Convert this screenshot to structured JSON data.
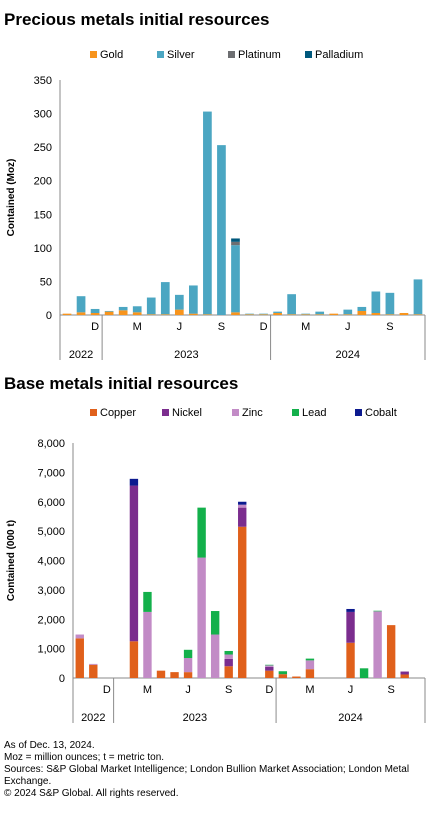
{
  "chart_data": [
    {
      "type": "bar",
      "stacked": true,
      "title": "Precious metals initial resources",
      "ylabel": "Contained (Moz)",
      "ylim": [
        0,
        350
      ],
      "yticks": [
        "0",
        "50",
        "100",
        "150",
        "200",
        "250",
        "300",
        "350"
      ],
      "ytick_values": [
        0,
        50,
        100,
        150,
        200,
        250,
        300,
        350
      ],
      "legend_position": "top",
      "categories": [
        "Oct 2022",
        "Nov 2022",
        "Dec 2022",
        "Jan 2023",
        "Feb 2023",
        "Mar 2023",
        "Apr 2023",
        "May 2023",
        "Jun 2023",
        "Jul 2023",
        "Aug 2023",
        "Sep 2023",
        "Oct 2023",
        "Nov 2023",
        "Dec 2023",
        "Jan 2024",
        "Feb 2024",
        "Mar 2024",
        "Apr 2024",
        "May 2024",
        "Jun 2024",
        "Jul 2024",
        "Aug 2024",
        "Sep 2024",
        "Oct 2024",
        "Nov 2024"
      ],
      "series": [
        {
          "name": "Gold",
          "color": "#f7941d",
          "values": [
            2,
            4,
            3,
            5,
            7,
            4,
            1,
            1,
            8,
            2,
            1,
            0,
            4,
            1,
            1,
            3,
            1,
            1,
            1,
            2,
            1,
            6,
            3,
            1,
            3,
            1
          ]
        },
        {
          "name": "Silver",
          "color": "#4ba6c2",
          "values": [
            0,
            24,
            6,
            1,
            5,
            9,
            25,
            48,
            22,
            42,
            302,
            253,
            100,
            1,
            1,
            2,
            30,
            1,
            4,
            0,
            7,
            6,
            32,
            32,
            0,
            52
          ]
        },
        {
          "name": "Platinum",
          "color": "#6d6e71",
          "values": [
            0,
            0,
            0,
            0,
            0,
            0,
            0,
            0,
            0,
            0,
            0,
            0,
            5,
            0,
            0,
            0,
            0,
            0,
            0,
            0,
            0,
            0,
            0,
            0,
            0,
            0
          ]
        },
        {
          "name": "Palladium",
          "color": "#00587c",
          "values": [
            0,
            0,
            0,
            0,
            0,
            0,
            0,
            0,
            0,
            0,
            0,
            0,
            5,
            0,
            0,
            0,
            0,
            0,
            0,
            0,
            0,
            0,
            0,
            0,
            0,
            0
          ]
        }
      ],
      "month_ticks": [
        {
          "index": 2,
          "label": "D"
        },
        {
          "index": 5,
          "label": "M"
        },
        {
          "index": 8,
          "label": "J"
        },
        {
          "index": 11,
          "label": "S"
        },
        {
          "index": 14,
          "label": "D"
        },
        {
          "index": 17,
          "label": "M"
        },
        {
          "index": 20,
          "label": "J"
        },
        {
          "index": 23,
          "label": "S"
        }
      ],
      "year_groups": [
        {
          "label": "2022",
          "start": 0,
          "end": 2
        },
        {
          "label": "2023",
          "start": 3,
          "end": 14
        },
        {
          "label": "2024",
          "start": 15,
          "end": 25
        }
      ]
    },
    {
      "type": "bar",
      "stacked": true,
      "title": "Base metals initial resources",
      "ylabel": "Contained (000 t)",
      "ylim": [
        0,
        8000
      ],
      "yticks": [
        "0",
        "1,000",
        "2,000",
        "3,000",
        "4,000",
        "5,000",
        "6,000",
        "7,000",
        "8,000"
      ],
      "ytick_values": [
        0,
        1000,
        2000,
        3000,
        4000,
        5000,
        6000,
        7000,
        8000
      ],
      "legend_position": "top",
      "categories": [
        "Oct 2022",
        "Nov 2022",
        "Dec 2022",
        "Jan 2023",
        "Feb 2023",
        "Mar 2023",
        "Apr 2023",
        "May 2023",
        "Jun 2023",
        "Jul 2023",
        "Aug 2023",
        "Sep 2023",
        "Oct 2023",
        "Nov 2023",
        "Dec 2023",
        "Jan 2024",
        "Feb 2024",
        "Mar 2024",
        "Apr 2024",
        "May 2024",
        "Jun 2024",
        "Jul 2024",
        "Aug 2024",
        "Sep 2024",
        "Oct 2024",
        "Nov 2024"
      ],
      "series": [
        {
          "name": "Copper",
          "color": "#e0601b",
          "values": [
            1350,
            450,
            0,
            0,
            1250,
            0,
            250,
            200,
            200,
            0,
            0,
            400,
            5150,
            0,
            250,
            130,
            50,
            300,
            0,
            0,
            1200,
            0,
            0,
            1800,
            120,
            0
          ]
        },
        {
          "name": "Nickel",
          "color": "#7b2d8e",
          "values": [
            0,
            0,
            0,
            0,
            5300,
            0,
            0,
            0,
            0,
            0,
            0,
            250,
            650,
            0,
            130,
            0,
            0,
            0,
            0,
            0,
            1050,
            0,
            0,
            0,
            100,
            0
          ]
        },
        {
          "name": "Zinc",
          "color": "#c28bc6",
          "values": [
            130,
            30,
            0,
            0,
            0,
            2250,
            0,
            0,
            480,
            4100,
            1480,
            150,
            100,
            0,
            50,
            0,
            0,
            300,
            0,
            0,
            0,
            0,
            2270,
            0,
            0,
            0
          ]
        },
        {
          "name": "Lead",
          "color": "#13b04b",
          "values": [
            0,
            0,
            0,
            0,
            0,
            680,
            0,
            0,
            280,
            1700,
            800,
            120,
            0,
            0,
            20,
            100,
            0,
            60,
            0,
            0,
            0,
            330,
            20,
            0,
            0,
            0
          ]
        },
        {
          "name": "Cobalt",
          "color": "#0c1a8f",
          "values": [
            0,
            0,
            0,
            0,
            230,
            0,
            0,
            0,
            0,
            0,
            0,
            0,
            100,
            0,
            0,
            0,
            0,
            0,
            0,
            0,
            100,
            0,
            0,
            0,
            0,
            0
          ]
        }
      ],
      "month_ticks": [
        {
          "index": 2,
          "label": "D"
        },
        {
          "index": 5,
          "label": "M"
        },
        {
          "index": 8,
          "label": "J"
        },
        {
          "index": 11,
          "label": "S"
        },
        {
          "index": 14,
          "label": "D"
        },
        {
          "index": 17,
          "label": "M"
        },
        {
          "index": 20,
          "label": "J"
        },
        {
          "index": 23,
          "label": "S"
        }
      ],
      "year_groups": [
        {
          "label": "2022",
          "start": 0,
          "end": 2
        },
        {
          "label": "2023",
          "start": 3,
          "end": 14
        },
        {
          "label": "2024",
          "start": 15,
          "end": 25
        }
      ]
    }
  ],
  "footer": {
    "line1": "As of Dec. 13, 2024.",
    "line2": "Moz = million ounces; t = metric ton.",
    "line3": "Sources: S&P Global Market Intelligence; London Bullion Market Association; London Metal Exchange.",
    "line4": "© 2024 S&P Global. All rights reserved."
  }
}
